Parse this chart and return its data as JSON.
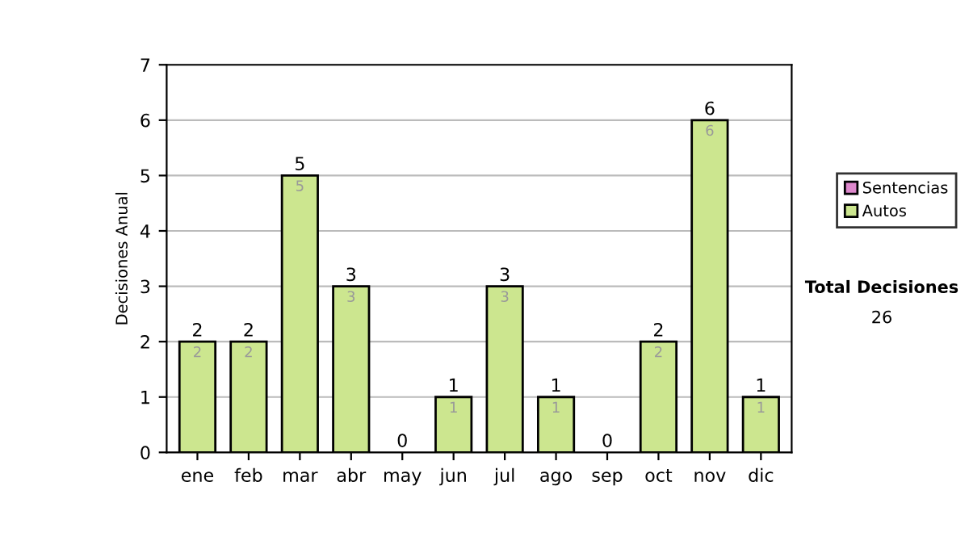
{
  "chart_data": {
    "type": "bar",
    "stacked": true,
    "ylabel": "Decisiones Anual",
    "categories": [
      "ene",
      "feb",
      "mar",
      "abr",
      "may",
      "jun",
      "jul",
      "ago",
      "sep",
      "oct",
      "nov",
      "dic"
    ],
    "series": [
      {
        "name": "Sentencias",
        "color": "#dd88cc",
        "values": [
          0,
          0,
          0,
          0,
          0,
          0,
          0,
          0,
          0,
          0,
          0,
          0
        ]
      },
      {
        "name": "Autos",
        "color": "#cce68f",
        "values": [
          2,
          2,
          5,
          3,
          0,
          1,
          3,
          1,
          0,
          2,
          6,
          1
        ],
        "value_labels": [
          "2",
          "2",
          "5",
          "3",
          null,
          "1",
          "3",
          "1",
          null,
          "2",
          "6",
          "1"
        ]
      }
    ],
    "totals": [
      "2",
      "2",
      "5",
      "3",
      "0",
      "1",
      "3",
      "1",
      "0",
      "2",
      "6",
      "1"
    ],
    "ylim": [
      0,
      7
    ],
    "yticks": [
      0,
      1,
      2,
      3,
      4,
      5,
      6,
      7
    ],
    "grid": "y",
    "legend": "right",
    "annotations": [
      "Total Decisiones",
      "26"
    ]
  }
}
